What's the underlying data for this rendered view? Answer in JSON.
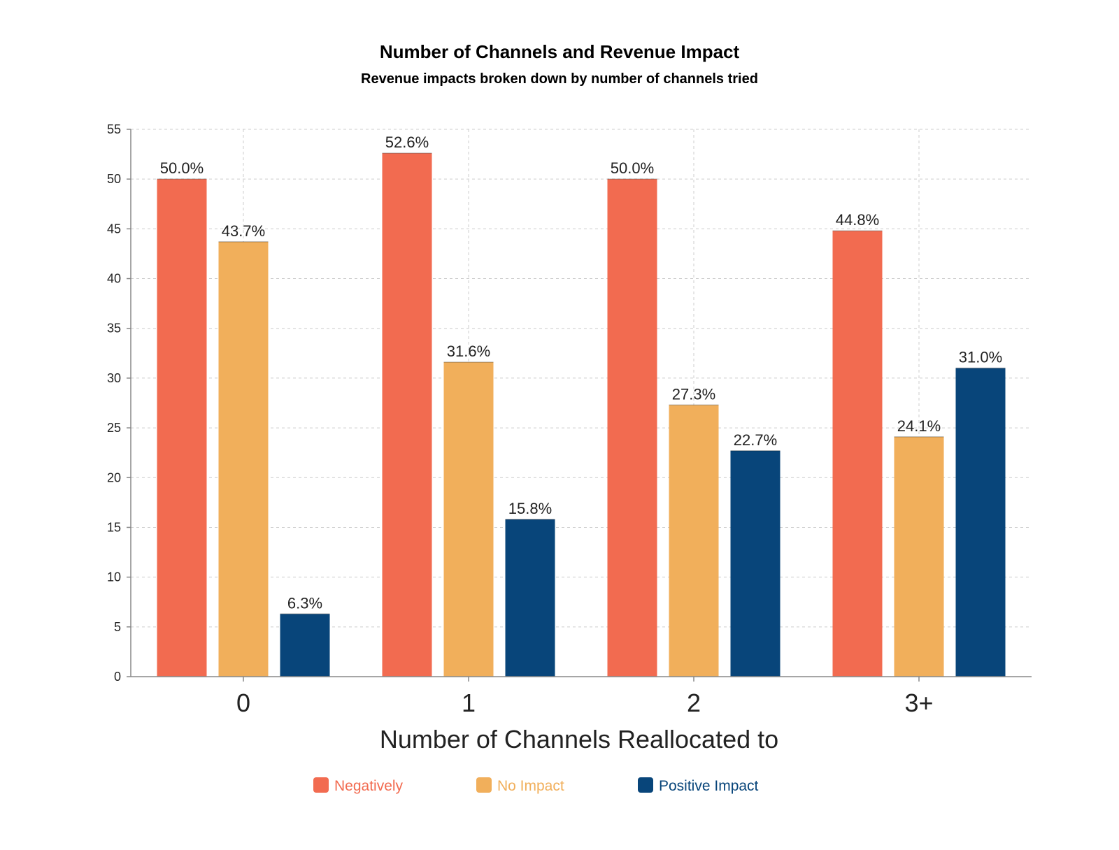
{
  "chart_data": {
    "type": "bar",
    "title": "Number of Channels and Revenue Impact",
    "subtitle": "Revenue impacts broken down by number of channels tried",
    "xlabel": "Number of Channels Reallocated to",
    "ylabel": "",
    "categories": [
      "0",
      "1",
      "2",
      "3+"
    ],
    "ylim": [
      0,
      55
    ],
    "yticks": [
      0,
      5,
      10,
      15,
      20,
      25,
      30,
      35,
      40,
      45,
      50,
      55
    ],
    "grid": true,
    "legend_position": "bottom-center",
    "series": [
      {
        "name": "Negatively",
        "color": "#F26B50",
        "values": [
          50.0,
          52.6,
          50.0,
          44.8
        ],
        "labels": [
          "50.0%",
          "52.6%",
          "50.0%",
          "44.8%"
        ]
      },
      {
        "name": "No Impact",
        "color": "#F1AF5B",
        "values": [
          43.7,
          31.6,
          27.3,
          24.1
        ],
        "labels": [
          "43.7%",
          "31.6%",
          "27.3%",
          "24.1%"
        ]
      },
      {
        "name": "Positive Impact",
        "color": "#08457A",
        "values": [
          6.3,
          15.8,
          22.7,
          31.0
        ],
        "labels": [
          "6.3%",
          "15.8%",
          "22.7%",
          "31.0%"
        ]
      }
    ]
  }
}
